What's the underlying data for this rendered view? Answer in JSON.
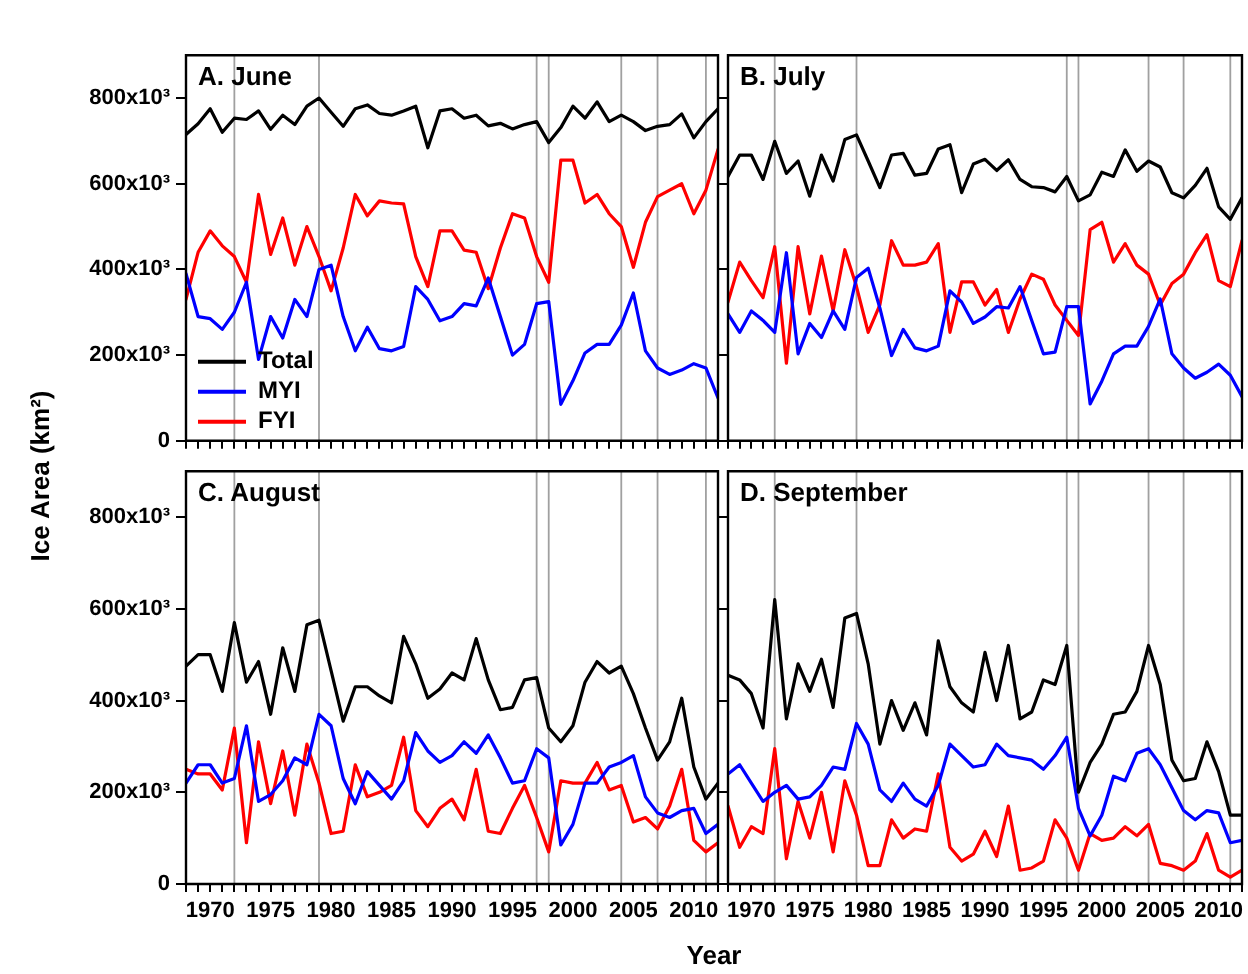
{
  "chart_data": [
    {
      "type": "line",
      "title": "A. June",
      "ylabel": "Ice Area (km²)",
      "tick_labels": "y",
      "legend": "bottom left",
      "xlim": [
        1968,
        2012
      ],
      "ylim": [
        0,
        900000
      ],
      "xticks": [
        {
          "value": 1968,
          "label": null
        },
        {
          "value": 1969,
          "label": null
        },
        {
          "value": 1970,
          "label": null
        },
        {
          "value": 1971,
          "label": null
        },
        {
          "value": 1972,
          "label": null
        },
        {
          "value": 1973,
          "label": null
        },
        {
          "value": 1974,
          "label": null
        },
        {
          "value": 1975,
          "label": null
        },
        {
          "value": 1976,
          "label": null
        },
        {
          "value": 1977,
          "label": null
        },
        {
          "value": 1978,
          "label": null
        },
        {
          "value": 1979,
          "label": null
        },
        {
          "value": 1980,
          "label": null
        },
        {
          "value": 1981,
          "label": null
        },
        {
          "value": 1982,
          "label": null
        },
        {
          "value": 1983,
          "label": null
        },
        {
          "value": 1984,
          "label": null
        },
        {
          "value": 1985,
          "label": null
        },
        {
          "value": 1986,
          "label": null
        },
        {
          "value": 1987,
          "label": null
        },
        {
          "value": 1988,
          "label": null
        },
        {
          "value": 1989,
          "label": null
        },
        {
          "value": 1990,
          "label": null
        },
        {
          "value": 1991,
          "label": null
        },
        {
          "value": 1992,
          "label": null
        },
        {
          "value": 1993,
          "label": null
        },
        {
          "value": 1994,
          "label": null
        },
        {
          "value": 1995,
          "label": null
        },
        {
          "value": 1996,
          "label": null
        },
        {
          "value": 1997,
          "label": null
        },
        {
          "value": 1998,
          "label": null
        },
        {
          "value": 1999,
          "label": null
        },
        {
          "value": 2000,
          "label": null
        },
        {
          "value": 2001,
          "label": null
        },
        {
          "value": 2002,
          "label": null
        },
        {
          "value": 2003,
          "label": null
        },
        {
          "value": 2004,
          "label": null
        },
        {
          "value": 2005,
          "label": null
        },
        {
          "value": 2006,
          "label": null
        },
        {
          "value": 2007,
          "label": null
        },
        {
          "value": 2008,
          "label": null
        },
        {
          "value": 2009,
          "label": null
        },
        {
          "value": 2010,
          "label": null
        },
        {
          "value": 2011,
          "label": null
        },
        {
          "value": 2012,
          "label": null
        }
      ],
      "yticks": [
        0,
        {
          "value": 200000,
          "label": "200x10³"
        },
        {
          "value": 400000,
          "label": "400x10³"
        },
        {
          "value": 600000,
          "label": "600x10³"
        },
        {
          "value": 800000,
          "label": "800x10³"
        }
      ],
      "x": [
        1968,
        1969,
        1970,
        1971,
        1972,
        1973,
        1974,
        1975,
        1976,
        1977,
        1978,
        1979,
        1980,
        1981,
        1982,
        1983,
        1984,
        1985,
        1986,
        1987,
        1988,
        1989,
        1990,
        1991,
        1992,
        1993,
        1994,
        1995,
        1996,
        1997,
        1998,
        1999,
        2000,
        2001,
        2002,
        2003,
        2004,
        2005,
        2006,
        2007,
        2008,
        2009,
        2010,
        2011,
        2012
      ],
      "ref_lines": [
        {
          "axis": "x",
          "value": 1972,
          "color": "#808080"
        },
        {
          "axis": "x",
          "value": 1979,
          "color": "#808080"
        },
        {
          "axis": "x",
          "value": 1997,
          "color": "#808080"
        },
        {
          "axis": "x",
          "value": 1998,
          "color": "#808080"
        },
        {
          "axis": "x",
          "value": 2004,
          "color": "#808080"
        },
        {
          "axis": "x",
          "value": 2007,
          "color": "#808080"
        },
        {
          "axis": "x",
          "value": 2011,
          "color": "#808080"
        }
      ],
      "series": [
        {
          "name": "Total",
          "color": "#000000",
          "values": [
            715000,
            740000,
            775000,
            720000,
            753000,
            750000,
            770000,
            727000,
            760000,
            738000,
            781000,
            800000,
            767000,
            734000,
            775000,
            784000,
            764000,
            760000,
            770000,
            781000,
            684000,
            770000,
            775000,
            753000,
            760000,
            735000,
            741000,
            728000,
            738000,
            745000,
            696000,
            731000,
            781000,
            753000,
            791000,
            745000,
            760000,
            745000,
            724000,
            734000,
            738000,
            763000,
            707000,
            745000,
            775000
          ]
        },
        {
          "name": "MYI",
          "color": "#0000ff",
          "values": [
            390000,
            290000,
            285000,
            260000,
            300000,
            370000,
            190000,
            290000,
            240000,
            330000,
            290000,
            400000,
            410000,
            290000,
            210000,
            265000,
            215000,
            210000,
            220000,
            360000,
            330000,
            280000,
            290000,
            320000,
            315000,
            380000,
            290000,
            200000,
            225000,
            320000,
            325000,
            85000,
            140000,
            205000,
            225000,
            225000,
            270000,
            345000,
            210000,
            170000,
            155000,
            165000,
            180000,
            170000,
            100000
          ]
        },
        {
          "name": "FYI",
          "color": "#ff0000",
          "values": [
            330000,
            440000,
            490000,
            455000,
            430000,
            370000,
            575000,
            435000,
            520000,
            410000,
            500000,
            430000,
            350000,
            450000,
            575000,
            525000,
            560000,
            555000,
            553000,
            430000,
            360000,
            490000,
            490000,
            445000,
            440000,
            355000,
            450000,
            530000,
            520000,
            430000,
            370000,
            655000,
            655000,
            555000,
            575000,
            530000,
            500000,
            405000,
            510000,
            570000,
            585000,
            600000,
            530000,
            585000,
            680000
          ]
        }
      ]
    },
    {
      "type": "line",
      "title": "B. July",
      "tick_labels": false,
      "xlim": [
        1968,
        2012
      ],
      "ylim": [
        0,
        900000
      ],
      "xticks": [
        {
          "value": 1968,
          "label": null
        },
        {
          "value": 1969,
          "label": null
        },
        {
          "value": 1970,
          "label": null
        },
        {
          "value": 1971,
          "label": null
        },
        {
          "value": 1972,
          "label": null
        },
        {
          "value": 1973,
          "label": null
        },
        {
          "value": 1974,
          "label": null
        },
        {
          "value": 1975,
          "label": null
        },
        {
          "value": 1976,
          "label": null
        },
        {
          "value": 1977,
          "label": null
        },
        {
          "value": 1978,
          "label": null
        },
        {
          "value": 1979,
          "label": null
        },
        {
          "value": 1980,
          "label": null
        },
        {
          "value": 1981,
          "label": null
        },
        {
          "value": 1982,
          "label": null
        },
        {
          "value": 1983,
          "label": null
        },
        {
          "value": 1984,
          "label": null
        },
        {
          "value": 1985,
          "label": null
        },
        {
          "value": 1986,
          "label": null
        },
        {
          "value": 1987,
          "label": null
        },
        {
          "value": 1988,
          "label": null
        },
        {
          "value": 1989,
          "label": null
        },
        {
          "value": 1990,
          "label": null
        },
        {
          "value": 1991,
          "label": null
        },
        {
          "value": 1992,
          "label": null
        },
        {
          "value": 1993,
          "label": null
        },
        {
          "value": 1994,
          "label": null
        },
        {
          "value": 1995,
          "label": null
        },
        {
          "value": 1996,
          "label": null
        },
        {
          "value": 1997,
          "label": null
        },
        {
          "value": 1998,
          "label": null
        },
        {
          "value": 1999,
          "label": null
        },
        {
          "value": 2000,
          "label": null
        },
        {
          "value": 2001,
          "label": null
        },
        {
          "value": 2002,
          "label": null
        },
        {
          "value": 2003,
          "label": null
        },
        {
          "value": 2004,
          "label": null
        },
        {
          "value": 2005,
          "label": null
        },
        {
          "value": 2006,
          "label": null
        },
        {
          "value": 2007,
          "label": null
        },
        {
          "value": 2008,
          "label": null
        },
        {
          "value": 2009,
          "label": null
        },
        {
          "value": 2010,
          "label": null
        },
        {
          "value": 2011,
          "label": null
        },
        {
          "value": 2012,
          "label": null
        }
      ],
      "yticks": [
        {
          "value": 0,
          "label": null
        },
        {
          "value": 200000,
          "label": null
        },
        {
          "value": 400000,
          "label": null
        },
        {
          "value": 600000,
          "label": null
        },
        {
          "value": 800000,
          "label": null
        }
      ],
      "x": [
        1968,
        1969,
        1970,
        1971,
        1972,
        1973,
        1974,
        1975,
        1976,
        1977,
        1978,
        1979,
        1980,
        1981,
        1982,
        1983,
        1984,
        1985,
        1986,
        1987,
        1988,
        1989,
        1990,
        1991,
        1992,
        1993,
        1994,
        1995,
        1996,
        1997,
        1998,
        1999,
        2000,
        2001,
        2002,
        2003,
        2004,
        2005,
        2006,
        2007,
        2008,
        2009,
        2010,
        2011,
        2012
      ],
      "ref_lines": [
        {
          "axis": "x",
          "value": 1972,
          "color": "#808080"
        },
        {
          "axis": "x",
          "value": 1979,
          "color": "#808080"
        },
        {
          "axis": "x",
          "value": 1997,
          "color": "#808080"
        },
        {
          "axis": "x",
          "value": 1998,
          "color": "#808080"
        },
        {
          "axis": "x",
          "value": 2004,
          "color": "#808080"
        },
        {
          "axis": "x",
          "value": 2007,
          "color": "#808080"
        },
        {
          "axis": "x",
          "value": 2011,
          "color": "#808080"
        }
      ],
      "series": [
        {
          "color": "#000000",
          "values": [
            617000,
            667000,
            667000,
            610000,
            699000,
            624000,
            653000,
            571000,
            667000,
            606000,
            703000,
            714000,
            653000,
            591000,
            667000,
            671000,
            620000,
            624000,
            681000,
            691000,
            579000,
            646000,
            657000,
            631000,
            656000,
            610000,
            593000,
            591000,
            581000,
            617000,
            560000,
            574000,
            627000,
            617000,
            679000,
            629000,
            653000,
            639000,
            579000,
            567000,
            596000,
            636000,
            546000,
            517000,
            567000
          ]
        },
        {
          "color": "#0000ff",
          "values": [
            296000,
            253000,
            303000,
            281000,
            253000,
            439000,
            203000,
            274000,
            241000,
            303000,
            260000,
            381000,
            403000,
            310000,
            199000,
            260000,
            217000,
            210000,
            221000,
            350000,
            324000,
            274000,
            289000,
            313000,
            310000,
            360000,
            281000,
            203000,
            207000,
            313000,
            313000,
            86000,
            139000,
            203000,
            221000,
            221000,
            267000,
            331000,
            203000,
            170000,
            146000,
            160000,
            179000,
            153000,
            103000
          ]
        },
        {
          "color": "#ff0000",
          "values": [
            324000,
            417000,
            374000,
            334000,
            453000,
            181000,
            453000,
            296000,
            431000,
            303000,
            446000,
            360000,
            253000,
            317000,
            467000,
            410000,
            410000,
            417000,
            460000,
            253000,
            371000,
            371000,
            317000,
            353000,
            253000,
            331000,
            389000,
            377000,
            317000,
            281000,
            246000,
            493000,
            510000,
            417000,
            460000,
            410000,
            389000,
            317000,
            367000,
            389000,
            439000,
            481000,
            374000,
            360000,
            467000
          ]
        }
      ]
    },
    {
      "type": "line",
      "title": "C. August",
      "xlabel": "Year",
      "xlim": [
        1968,
        2012
      ],
      "ylim": [
        0,
        900000
      ],
      "xticks": [
        {
          "value": 1968,
          "label": null
        },
        {
          "value": 1969,
          "label": null
        },
        1970,
        {
          "value": 1971,
          "label": null
        },
        {
          "value": 1972,
          "label": null
        },
        {
          "value": 1973,
          "label": null
        },
        {
          "value": 1974,
          "label": null
        },
        1975,
        {
          "value": 1976,
          "label": null
        },
        {
          "value": 1977,
          "label": null
        },
        {
          "value": 1978,
          "label": null
        },
        {
          "value": 1979,
          "label": null
        },
        1980,
        {
          "value": 1981,
          "label": null
        },
        {
          "value": 1982,
          "label": null
        },
        {
          "value": 1983,
          "label": null
        },
        {
          "value": 1984,
          "label": null
        },
        1985,
        {
          "value": 1986,
          "label": null
        },
        {
          "value": 1987,
          "label": null
        },
        {
          "value": 1988,
          "label": null
        },
        {
          "value": 1989,
          "label": null
        },
        1990,
        {
          "value": 1991,
          "label": null
        },
        {
          "value": 1992,
          "label": null
        },
        {
          "value": 1993,
          "label": null
        },
        {
          "value": 1994,
          "label": null
        },
        1995,
        {
          "value": 1996,
          "label": null
        },
        {
          "value": 1997,
          "label": null
        },
        {
          "value": 1998,
          "label": null
        },
        {
          "value": 1999,
          "label": null
        },
        2000,
        {
          "value": 2001,
          "label": null
        },
        {
          "value": 2002,
          "label": null
        },
        {
          "value": 2003,
          "label": null
        },
        {
          "value": 2004,
          "label": null
        },
        2005,
        {
          "value": 2006,
          "label": null
        },
        {
          "value": 2007,
          "label": null
        },
        {
          "value": 2008,
          "label": null
        },
        {
          "value": 2009,
          "label": null
        },
        2010,
        {
          "value": 2011,
          "label": null
        },
        {
          "value": 2012,
          "label": null
        }
      ],
      "yticks": [
        0,
        {
          "value": 200000,
          "label": "200x10³"
        },
        {
          "value": 400000,
          "label": "400x10³"
        },
        {
          "value": 600000,
          "label": "600x10³"
        },
        {
          "value": 800000,
          "label": "800x10³"
        }
      ],
      "x": [
        1968,
        1969,
        1970,
        1971,
        1972,
        1973,
        1974,
        1975,
        1976,
        1977,
        1978,
        1979,
        1980,
        1981,
        1982,
        1983,
        1984,
        1985,
        1986,
        1987,
        1988,
        1989,
        1990,
        1991,
        1992,
        1993,
        1994,
        1995,
        1996,
        1997,
        1998,
        1999,
        2000,
        2001,
        2002,
        2003,
        2004,
        2005,
        2006,
        2007,
        2008,
        2009,
        2010,
        2011,
        2012
      ],
      "ref_lines": [
        {
          "axis": "x",
          "value": 1972,
          "color": "#808080"
        },
        {
          "axis": "x",
          "value": 1979,
          "color": "#808080"
        },
        {
          "axis": "x",
          "value": 1997,
          "color": "#808080"
        },
        {
          "axis": "x",
          "value": 1998,
          "color": "#808080"
        },
        {
          "axis": "x",
          "value": 2004,
          "color": "#808080"
        },
        {
          "axis": "x",
          "value": 2007,
          "color": "#808080"
        },
        {
          "axis": "x",
          "value": 2011,
          "color": "#808080"
        }
      ],
      "series": [
        {
          "color": "#000000",
          "values": [
            475000,
            500000,
            500000,
            420000,
            570000,
            440000,
            485000,
            370000,
            515000,
            420000,
            565000,
            575000,
            465000,
            355000,
            430000,
            430000,
            410000,
            395000,
            540000,
            480000,
            405000,
            425000,
            460000,
            445000,
            535000,
            445000,
            380000,
            385000,
            445000,
            450000,
            340000,
            310000,
            345000,
            440000,
            485000,
            460000,
            475000,
            415000,
            340000,
            270000,
            310000,
            405000,
            255000,
            185000,
            220000
          ]
        },
        {
          "color": "#0000ff",
          "values": [
            220000,
            260000,
            260000,
            220000,
            230000,
            345000,
            180000,
            195000,
            225000,
            275000,
            260000,
            370000,
            345000,
            230000,
            175000,
            245000,
            215000,
            185000,
            225000,
            330000,
            290000,
            265000,
            280000,
            310000,
            285000,
            325000,
            275000,
            220000,
            225000,
            295000,
            275000,
            85000,
            130000,
            220000,
            220000,
            255000,
            265000,
            280000,
            190000,
            155000,
            145000,
            160000,
            165000,
            110000,
            130000
          ]
        },
        {
          "color": "#ff0000",
          "values": [
            250000,
            240000,
            240000,
            205000,
            340000,
            90000,
            310000,
            175000,
            290000,
            150000,
            305000,
            220000,
            110000,
            115000,
            260000,
            190000,
            200000,
            215000,
            320000,
            160000,
            125000,
            165000,
            185000,
            140000,
            250000,
            115000,
            110000,
            165000,
            215000,
            145000,
            70000,
            225000,
            220000,
            220000,
            265000,
            205000,
            215000,
            135000,
            145000,
            120000,
            170000,
            250000,
            95000,
            70000,
            90000
          ]
        }
      ]
    },
    {
      "type": "line",
      "title": "D. September",
      "tick_labels": "x",
      "xlim": [
        1968,
        2012
      ],
      "ylim": [
        0,
        900000
      ],
      "xticks": [
        {
          "value": 1968,
          "label": null
        },
        {
          "value": 1969,
          "label": null
        },
        1970,
        {
          "value": 1971,
          "label": null
        },
        {
          "value": 1972,
          "label": null
        },
        {
          "value": 1973,
          "label": null
        },
        {
          "value": 1974,
          "label": null
        },
        1975,
        {
          "value": 1976,
          "label": null
        },
        {
          "value": 1977,
          "label": null
        },
        {
          "value": 1978,
          "label": null
        },
        {
          "value": 1979,
          "label": null
        },
        1980,
        {
          "value": 1981,
          "label": null
        },
        {
          "value": 1982,
          "label": null
        },
        {
          "value": 1983,
          "label": null
        },
        {
          "value": 1984,
          "label": null
        },
        1985,
        {
          "value": 1986,
          "label": null
        },
        {
          "value": 1987,
          "label": null
        },
        {
          "value": 1988,
          "label": null
        },
        {
          "value": 1989,
          "label": null
        },
        1990,
        {
          "value": 1991,
          "label": null
        },
        {
          "value": 1992,
          "label": null
        },
        {
          "value": 1993,
          "label": null
        },
        {
          "value": 1994,
          "label": null
        },
        1995,
        {
          "value": 1996,
          "label": null
        },
        {
          "value": 1997,
          "label": null
        },
        {
          "value": 1998,
          "label": null
        },
        {
          "value": 1999,
          "label": null
        },
        2000,
        {
          "value": 2001,
          "label": null
        },
        {
          "value": 2002,
          "label": null
        },
        {
          "value": 2003,
          "label": null
        },
        {
          "value": 2004,
          "label": null
        },
        2005,
        {
          "value": 2006,
          "label": null
        },
        {
          "value": 2007,
          "label": null
        },
        {
          "value": 2008,
          "label": null
        },
        {
          "value": 2009,
          "label": null
        },
        2010,
        {
          "value": 2011,
          "label": null
        },
        {
          "value": 2012,
          "label": null
        }
      ],
      "yticks": [
        {
          "value": 0,
          "label": null
        },
        {
          "value": 200000,
          "label": null
        },
        {
          "value": 400000,
          "label": null
        },
        {
          "value": 600000,
          "label": null
        },
        {
          "value": 800000,
          "label": null
        }
      ],
      "x": [
        1968,
        1969,
        1970,
        1971,
        1972,
        1973,
        1974,
        1975,
        1976,
        1977,
        1978,
        1979,
        1980,
        1981,
        1982,
        1983,
        1984,
        1985,
        1986,
        1987,
        1988,
        1989,
        1990,
        1991,
        1992,
        1993,
        1994,
        1995,
        1996,
        1997,
        1998,
        1999,
        2000,
        2001,
        2002,
        2003,
        2004,
        2005,
        2006,
        2007,
        2008,
        2009,
        2010,
        2011,
        2012
      ],
      "ref_lines": [
        {
          "axis": "x",
          "value": 1972,
          "color": "#808080"
        },
        {
          "axis": "x",
          "value": 1979,
          "color": "#808080"
        },
        {
          "axis": "x",
          "value": 1997,
          "color": "#808080"
        },
        {
          "axis": "x",
          "value": 1998,
          "color": "#808080"
        },
        {
          "axis": "x",
          "value": 2004,
          "color": "#808080"
        },
        {
          "axis": "x",
          "value": 2007,
          "color": "#808080"
        },
        {
          "axis": "x",
          "value": 2011,
          "color": "#808080"
        }
      ],
      "series": [
        {
          "color": "#000000",
          "values": [
            455000,
            445000,
            415000,
            340000,
            620000,
            360000,
            480000,
            420000,
            490000,
            385000,
            580000,
            590000,
            480000,
            305000,
            400000,
            335000,
            395000,
            325000,
            530000,
            430000,
            395000,
            375000,
            505000,
            400000,
            520000,
            360000,
            375000,
            445000,
            435000,
            520000,
            200000,
            265000,
            305000,
            370000,
            375000,
            420000,
            520000,
            435000,
            270000,
            225000,
            230000,
            310000,
            245000,
            150000,
            150000
          ]
        },
        {
          "color": "#0000ff",
          "values": [
            240000,
            260000,
            220000,
            180000,
            200000,
            215000,
            185000,
            190000,
            215000,
            255000,
            250000,
            350000,
            305000,
            205000,
            180000,
            220000,
            185000,
            170000,
            215000,
            305000,
            280000,
            255000,
            260000,
            305000,
            280000,
            275000,
            270000,
            250000,
            280000,
            320000,
            165000,
            105000,
            150000,
            235000,
            225000,
            285000,
            295000,
            260000,
            210000,
            160000,
            140000,
            160000,
            155000,
            90000,
            95000
          ]
        },
        {
          "color": "#ff0000",
          "values": [
            170000,
            80000,
            125000,
            110000,
            295000,
            55000,
            180000,
            100000,
            200000,
            70000,
            225000,
            150000,
            40000,
            40000,
            140000,
            100000,
            120000,
            115000,
            240000,
            80000,
            50000,
            65000,
            115000,
            60000,
            170000,
            30000,
            35000,
            50000,
            140000,
            100000,
            30000,
            110000,
            95000,
            100000,
            125000,
            105000,
            130000,
            45000,
            40000,
            30000,
            50000,
            110000,
            30000,
            15000,
            30000
          ]
        }
      ]
    }
  ]
}
